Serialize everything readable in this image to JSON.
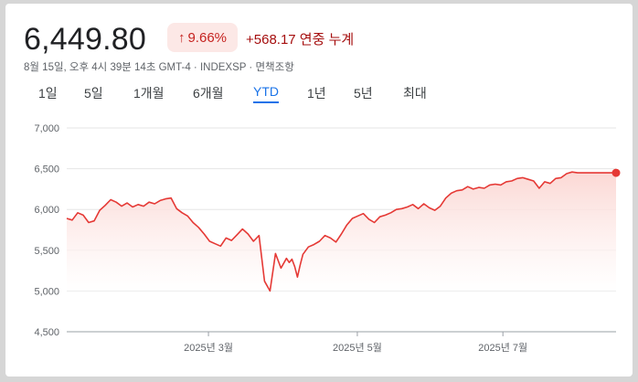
{
  "header": {
    "price": "6,449.80",
    "change_percent": "9.66%",
    "change_direction": "up",
    "change_abs": "+568.17 연중 누계",
    "meta": "8월 15일, 오후 4시 39분 14초 GMT-4 · INDEXSP · 면책조항"
  },
  "tabs": [
    {
      "label": "1일"
    },
    {
      "label": "5일"
    },
    {
      "label": "1개월"
    },
    {
      "label": "6개월"
    },
    {
      "label": "YTD",
      "active": true
    },
    {
      "label": "1년"
    },
    {
      "label": "5년"
    },
    {
      "label": "최대"
    }
  ],
  "colors": {
    "line": "#e53935",
    "fill": "#fbd6d2",
    "badge_bg": "#fce8e6",
    "badge_text": "#c5221f",
    "change_text": "#a50e0e",
    "active_tab": "#1a73e8"
  },
  "chart_data": {
    "type": "area",
    "y_ticks": [
      "7,000",
      "6,500",
      "6,000",
      "5,500",
      "5,000",
      "4,500"
    ],
    "ylim": [
      4500,
      7000
    ],
    "x_tick_labels": [
      {
        "label": "2025년 3월",
        "pos": 0.258
      },
      {
        "label": "2025년 5월",
        "pos": 0.529
      },
      {
        "label": "2025년 7월",
        "pos": 0.794
      }
    ],
    "xlim": [
      0,
      1
    ],
    "series": [
      {
        "x": [
          0,
          0.01,
          0.02,
          0.03,
          0.04,
          0.05,
          0.06,
          0.07,
          0.08,
          0.09,
          0.1,
          0.11,
          0.12,
          0.13,
          0.14,
          0.15,
          0.16,
          0.17,
          0.18,
          0.19,
          0.2,
          0.21,
          0.22,
          0.23,
          0.24,
          0.25,
          0.26,
          0.27,
          0.28,
          0.29,
          0.3,
          0.31,
          0.32,
          0.33,
          0.34,
          0.35,
          0.36,
          0.37,
          0.38,
          0.39,
          0.4,
          0.405,
          0.41,
          0.415,
          0.42,
          0.425,
          0.43,
          0.44,
          0.45,
          0.46,
          0.47,
          0.48,
          0.49,
          0.5,
          0.51,
          0.52,
          0.53,
          0.54,
          0.55,
          0.56,
          0.57,
          0.58,
          0.59,
          0.6,
          0.61,
          0.62,
          0.63,
          0.64,
          0.65,
          0.66,
          0.67,
          0.68,
          0.69,
          0.7,
          0.71,
          0.72,
          0.73,
          0.74,
          0.75,
          0.76,
          0.77,
          0.78,
          0.79,
          0.8,
          0.81,
          0.82,
          0.83,
          0.84,
          0.85,
          0.86,
          0.87,
          0.88,
          0.89,
          0.9,
          0.91,
          0.92,
          0.93,
          0.94,
          0.95,
          0.96,
          0.97,
          0.98,
          0.99,
          1.0
        ],
        "values": [
          5890,
          5870,
          5960,
          5930,
          5840,
          5860,
          5990,
          6050,
          6120,
          6090,
          6040,
          6080,
          6030,
          6060,
          6040,
          6090,
          6070,
          6110,
          6130,
          6140,
          6010,
          5960,
          5920,
          5840,
          5780,
          5700,
          5610,
          5580,
          5550,
          5650,
          5620,
          5690,
          5760,
          5700,
          5610,
          5680,
          5120,
          5000,
          5460,
          5280,
          5400,
          5350,
          5390,
          5300,
          5170,
          5320,
          5450,
          5540,
          5570,
          5610,
          5680,
          5650,
          5600,
          5700,
          5810,
          5890,
          5920,
          5950,
          5880,
          5840,
          5910,
          5930,
          5960,
          6000,
          6010,
          6030,
          6060,
          6010,
          6070,
          6020,
          5990,
          6040,
          6140,
          6200,
          6230,
          6240,
          6280,
          6250,
          6270,
          6260,
          6300,
          6310,
          6300,
          6340,
          6350,
          6380,
          6390,
          6370,
          6350,
          6260,
          6340,
          6320,
          6380,
          6390,
          6440,
          6460,
          6450,
          6449.8,
          6449.8,
          6449.8,
          6449.8,
          6449.8,
          6449.8,
          6449.8
        ]
      }
    ]
  }
}
